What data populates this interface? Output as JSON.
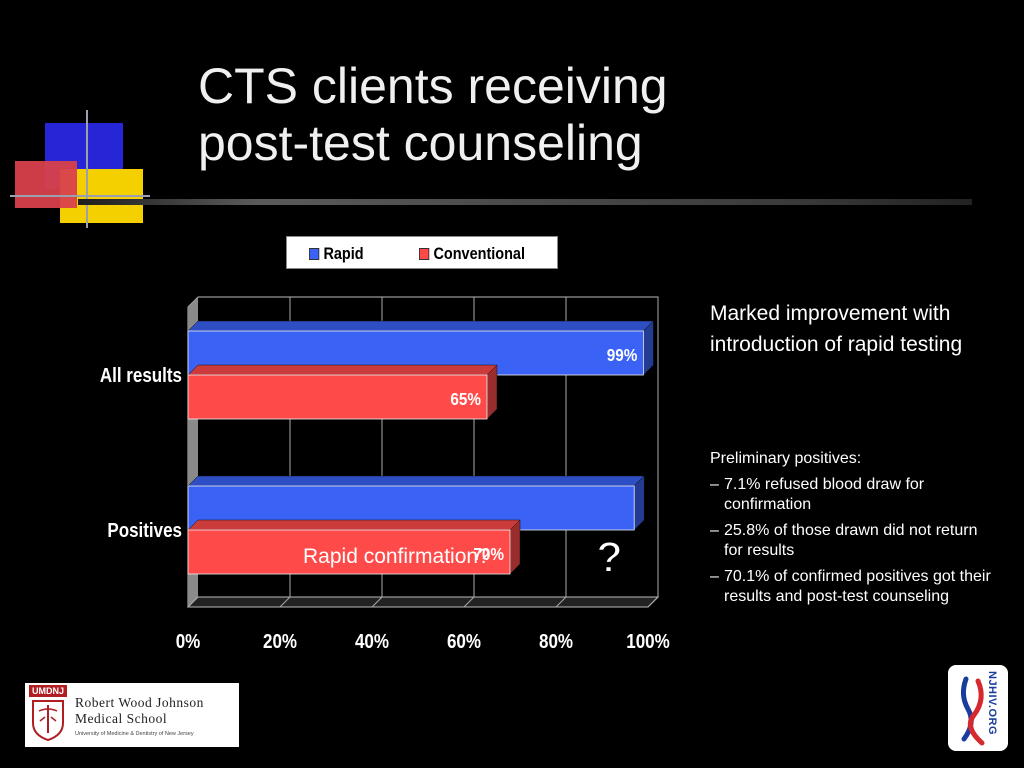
{
  "slide": {
    "title_lines": [
      "CTS clients receiving",
      "post-test counseling"
    ]
  },
  "chart_data": {
    "type": "bar",
    "orientation": "horizontal",
    "categories": [
      "All results",
      "Positives"
    ],
    "series": [
      {
        "name": "Rapid",
        "color": "#3a62f5",
        "values": [
          99,
          97
        ],
        "labels": [
          "99%",
          ""
        ]
      },
      {
        "name": "Conventional",
        "color": "#ff4a4a",
        "values": [
          65,
          70
        ],
        "labels": [
          "65%",
          "70%"
        ]
      }
    ],
    "x_ticks": [
      "0%",
      "20%",
      "40%",
      "60%",
      "80%",
      "100%"
    ],
    "xlim": [
      0,
      100
    ],
    "grid": true,
    "legend_position": "top",
    "annotations": {
      "callout": "Rapid confirmation?",
      "question_mark": "?"
    }
  },
  "side_text": {
    "main": "Marked improvement with introduction of rapid testing",
    "sub_heading": "Preliminary positives:",
    "bullets": [
      "7.1% refused blood draw for confirmation",
      "25.8% of those drawn did not return for results",
      "70.1% of confirmed positives got their results and post-test counseling"
    ]
  },
  "logos": {
    "rwj_tag": "UMDNJ",
    "rwj_name_line1": "Robert Wood Johnson",
    "rwj_name_line2": "Medical School",
    "rwj_sub": "University of Medicine & Dentistry of New Jersey",
    "nj_text": "NJHIV.ORG"
  }
}
